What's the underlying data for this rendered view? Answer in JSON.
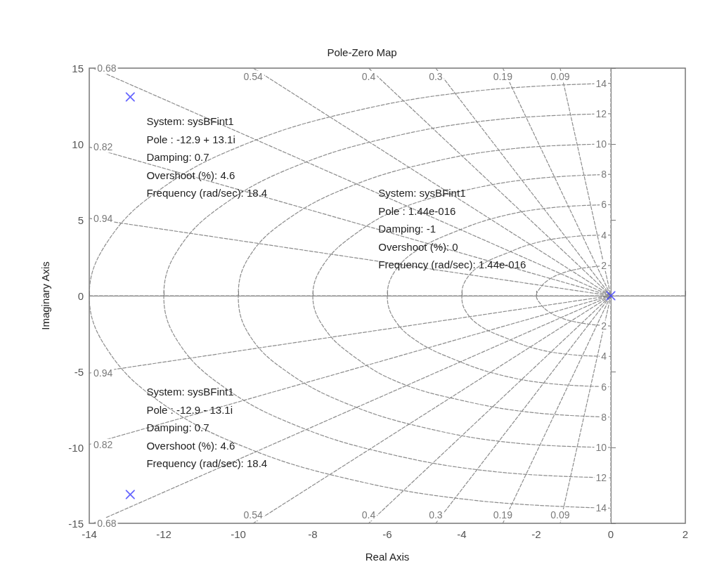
{
  "chart_data": {
    "type": "scatter",
    "title": "Pole-Zero Map",
    "xlabel": "Real Axis",
    "ylabel": "Imaginary Axis",
    "xlim": [
      -14,
      2
    ],
    "xticks": [
      -14,
      -12,
      -10,
      -8,
      -6,
      -4,
      -2,
      0,
      2
    ],
    "ylim": [
      -15,
      15
    ],
    "yticks": [
      -15,
      -10,
      -5,
      0,
      5,
      10,
      15
    ],
    "legend": false,
    "line_style": "dashed",
    "series": [
      {
        "type": "line",
        "name": "0.09",
        "color": "#8c8c8c",
        "x": [
          -1.36,
          0,
          -1.36
        ],
        "values": [
          15,
          0,
          -15
        ]
      },
      {
        "type": "line",
        "name": "0.19",
        "color": "#8c8c8c",
        "x": [
          -2.9,
          0,
          -2.9
        ],
        "values": [
          15,
          0,
          -15
        ]
      },
      {
        "type": "line",
        "name": "0.3",
        "color": "#8c8c8c",
        "x": [
          -4.7,
          0,
          -4.7
        ],
        "values": [
          15,
          0,
          -15
        ]
      },
      {
        "type": "line",
        "name": "0.4",
        "color": "#8c8c8c",
        "x": [
          -6.5,
          0,
          -6.5
        ],
        "values": [
          15,
          0,
          -15
        ]
      },
      {
        "type": "line",
        "name": "0.54",
        "color": "#8c8c8c",
        "x": [
          -9.6,
          0,
          -9.6
        ],
        "values": [
          15,
          0,
          -15
        ]
      },
      {
        "type": "line",
        "name": "0.68",
        "color": "#8c8c8c",
        "x": [
          -13.9,
          0,
          -13.9
        ],
        "values": [
          15,
          0,
          -15
        ]
      },
      {
        "type": "line",
        "name": "0.82",
        "color": "#8c8c8c",
        "x": [
          -14,
          0,
          -14
        ],
        "values": [
          9.8,
          0,
          -9.8
        ]
      },
      {
        "type": "line",
        "name": "0.94",
        "color": "#8c8c8c",
        "x": [
          -14,
          0,
          -14
        ],
        "values": [
          5.1,
          0,
          -5.1
        ]
      },
      {
        "type": "line",
        "color": "#8c8c8c",
        "x": [
          -14,
          2
        ],
        "values": [
          0,
          0
        ]
      },
      {
        "type": "line",
        "color": "#8c8c8c",
        "x": [
          0,
          0
        ],
        "values": [
          15,
          -15
        ]
      },
      {
        "type": "line",
        "name": "2",
        "color": "#8c8c8c",
        "x": [
          0,
          -0.5,
          -1,
          -1.4,
          -1.7,
          -1.9,
          -2,
          -1.9,
          -1.7,
          -1.4,
          -1,
          -0.5,
          0
        ],
        "values": [
          2,
          1.9,
          1.7,
          1.4,
          1,
          0.5,
          0,
          -0.5,
          -1,
          -1.4,
          -1.7,
          -1.9,
          -2
        ]
      },
      {
        "type": "line",
        "name": "4",
        "color": "#8c8c8c",
        "x": [
          0,
          -1,
          -2,
          -2.8,
          -3.5,
          -3.9,
          -4,
          -3.9,
          -3.5,
          -2.8,
          -2,
          -1,
          0
        ],
        "values": [
          4,
          3.9,
          3.5,
          2.8,
          2,
          1,
          0,
          -1,
          -2,
          -2.8,
          -3.5,
          -3.9,
          -4
        ]
      },
      {
        "type": "line",
        "name": "6",
        "color": "#8c8c8c",
        "x": [
          0,
          -1.6,
          -3,
          -4.2,
          -5.2,
          -5.8,
          -6,
          -5.8,
          -5.2,
          -4.2,
          -3,
          -1.6,
          0
        ],
        "values": [
          6,
          5.8,
          5.2,
          4.2,
          3,
          1.6,
          0,
          -1.6,
          -3,
          -4.2,
          -5.2,
          -5.8,
          -6
        ]
      },
      {
        "type": "line",
        "name": "8",
        "color": "#8c8c8c",
        "x": [
          0,
          -2.1,
          -4,
          -5.7,
          -6.9,
          -7.7,
          -8,
          -7.7,
          -6.9,
          -5.7,
          -4,
          -2.1,
          0
        ],
        "values": [
          8,
          7.7,
          6.9,
          5.7,
          4,
          2.1,
          0,
          -2.1,
          -4,
          -5.7,
          -6.9,
          -7.7,
          -8
        ]
      },
      {
        "type": "line",
        "name": "10",
        "color": "#8c8c8c",
        "x": [
          0,
          -2.6,
          -5,
          -7.1,
          -8.7,
          -9.7,
          -10,
          -9.7,
          -8.7,
          -7.1,
          -5,
          -2.6,
          0
        ],
        "values": [
          10,
          9.7,
          8.7,
          7.1,
          5,
          2.6,
          0,
          -2.6,
          -5,
          -7.1,
          -8.7,
          -9.7,
          -10
        ]
      },
      {
        "type": "line",
        "name": "12",
        "color": "#8c8c8c",
        "x": [
          0,
          -3.1,
          -6,
          -8.5,
          -10.4,
          -11.6,
          -12,
          -11.6,
          -10.4,
          -8.5,
          -6,
          -3.1,
          0
        ],
        "values": [
          12,
          11.6,
          10.4,
          8.5,
          6,
          3.1,
          0,
          -3.1,
          -6,
          -8.5,
          -10.4,
          -11.6,
          -12
        ]
      },
      {
        "type": "line",
        "name": "14",
        "color": "#8c8c8c",
        "x": [
          0,
          -3.6,
          -7,
          -9.9,
          -12.1,
          -13.5,
          -14,
          -13.5,
          -12.1,
          -9.9,
          -7,
          -3.6,
          0
        ],
        "values": [
          14,
          13.5,
          12.1,
          9.9,
          7,
          3.6,
          0,
          -3.6,
          -7,
          -9.9,
          -12.1,
          -13.5,
          -14
        ]
      },
      {
        "color": "#4040ff",
        "marker": "cross",
        "x": [
          -12.9,
          -12.9,
          0
        ],
        "values": [
          13.1,
          -13.1,
          0
        ]
      }
    ],
    "annotations": [
      "System: sysBFint1\nPole : -12.9 + 13.1i\nDamping: 0.7\nOvershoot (%): 4.6\nFrequency (rad/sec): 18.4",
      "System: sysBFint1\nPole : -12.9 - 13.1i\nDamping: 0.7\nOvershoot (%): 4.6\nFrequency (rad/sec): 18.4",
      "System: sysBFint1\nPole : 1.44e-016\nDamping: -1\nOvershoot (%): 0\nFrequency (rad/sec): 1.44e-016"
    ]
  }
}
